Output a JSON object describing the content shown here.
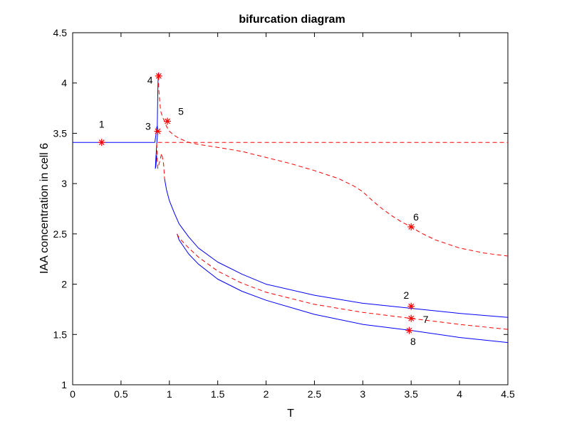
{
  "chart_data": {
    "type": "line",
    "title": "bifurcation diagram",
    "xlabel": "T",
    "ylabel": "IAA concentration in cell 6",
    "xlim": [
      0,
      4.5
    ],
    "ylim": [
      1,
      4.5
    ],
    "xticks": [
      "0",
      "0.5",
      "1",
      "1.5",
      "2",
      "2.5",
      "3",
      "3.5",
      "4",
      "4.5"
    ],
    "yticks": [
      "1",
      "1.5",
      "2",
      "2.5",
      "3",
      "3.5",
      "4",
      "4.5"
    ],
    "xtick_values": [
      0,
      0.5,
      1,
      1.5,
      2,
      2.5,
      3,
      3.5,
      4,
      4.5
    ],
    "ytick_values": [
      1,
      1.5,
      2,
      2.5,
      3,
      3.5,
      4,
      4.5
    ],
    "grid": false,
    "colors": {
      "stable": "#0000ff",
      "unstable": "#ff0000",
      "axes": "#000000"
    },
    "series": [
      {
        "style": "stable",
        "x": [
          0,
          0.5,
          0.85
        ],
        "y": [
          3.41,
          3.41,
          3.41
        ]
      },
      {
        "style": "stable",
        "x": [
          0.85,
          0.86,
          0.87,
          0.875,
          0.88,
          0.87,
          0.86,
          0.855,
          0.86,
          0.865,
          0.87
        ],
        "y": [
          3.41,
          3.48,
          3.56,
          3.57,
          3.52,
          3.4,
          3.25,
          3.15,
          3.17,
          3.22,
          3.28
        ]
      },
      {
        "style": "stable",
        "x": [
          0.875,
          0.88,
          0.885
        ],
        "y": [
          3.55,
          3.9,
          4.1
        ]
      },
      {
        "style": "stable",
        "x": [
          0.95,
          0.97,
          1.0,
          1.05,
          1.1,
          1.2,
          1.3,
          1.5,
          1.75,
          2.0,
          2.5,
          3.0,
          3.5,
          4.0,
          4.5
        ],
        "y": [
          3.05,
          2.94,
          2.83,
          2.71,
          2.6,
          2.47,
          2.36,
          2.22,
          2.1,
          2.0,
          1.89,
          1.81,
          1.76,
          1.71,
          1.67
        ]
      },
      {
        "style": "stable",
        "x": [
          1.08,
          1.1,
          1.2,
          1.3,
          1.5,
          1.75,
          2.0,
          2.5,
          3.0,
          3.5,
          4.0,
          4.5
        ],
        "y": [
          2.5,
          2.44,
          2.3,
          2.2,
          2.05,
          1.93,
          1.84,
          1.7,
          1.6,
          1.54,
          1.47,
          1.42
        ]
      },
      {
        "style": "unstable",
        "x": [
          0.88,
          1.0,
          1.5,
          2.0,
          2.5,
          3.0,
          3.5,
          4.0,
          4.5
        ],
        "y": [
          3.41,
          3.41,
          3.41,
          3.41,
          3.41,
          3.41,
          3.41,
          3.41,
          3.41
        ]
      },
      {
        "style": "unstable",
        "x": [
          0.885,
          0.89,
          0.9,
          0.91,
          0.93,
          0.95,
          0.97,
          1.0,
          1.05,
          1.1,
          1.2,
          1.3,
          1.5,
          1.75,
          2.0,
          2.25,
          2.5,
          2.75,
          2.9,
          3.0,
          3.1,
          3.2,
          3.3,
          3.4,
          3.5,
          3.6,
          3.75,
          4.0,
          4.25,
          4.5
        ],
        "y": [
          4.07,
          3.95,
          3.82,
          3.72,
          3.66,
          3.62,
          3.57,
          3.52,
          3.48,
          3.45,
          3.41,
          3.39,
          3.36,
          3.32,
          3.26,
          3.2,
          3.13,
          3.05,
          2.98,
          2.92,
          2.83,
          2.75,
          2.68,
          2.62,
          2.57,
          2.51,
          2.44,
          2.36,
          2.31,
          2.28
        ]
      },
      {
        "style": "unstable",
        "x": [
          0.87,
          0.875,
          0.88,
          0.9,
          0.92,
          0.94,
          0.95
        ],
        "y": [
          3.4,
          3.25,
          3.15,
          3.22,
          3.3,
          3.2,
          3.05
        ]
      },
      {
        "style": "unstable",
        "x": [
          1.08,
          1.1,
          1.2,
          1.3,
          1.5,
          1.75,
          2.0,
          2.5,
          3.0,
          3.5,
          4.0,
          4.5
        ],
        "y": [
          2.5,
          2.46,
          2.36,
          2.27,
          2.13,
          2.01,
          1.92,
          1.8,
          1.72,
          1.66,
          1.6,
          1.55
        ]
      }
    ],
    "markers": [
      {
        "label": "1",
        "x": 0.3,
        "y": 3.41,
        "label_dx": 0.0,
        "label_dy": 0.18
      },
      {
        "label": "2",
        "x": 3.5,
        "y": 1.78,
        "label_dx": -0.05,
        "label_dy": 0.11
      },
      {
        "label": "3",
        "x": 0.88,
        "y": 3.52,
        "label_dx": -0.1,
        "label_dy": 0.05
      },
      {
        "label": "4",
        "x": 0.89,
        "y": 4.07,
        "label_dx": -0.09,
        "label_dy": -0.04
      },
      {
        "label": "5",
        "x": 0.98,
        "y": 3.62,
        "label_dx": 0.14,
        "label_dy": 0.1
      },
      {
        "label": "6",
        "x": 3.5,
        "y": 2.57,
        "label_dx": 0.05,
        "label_dy": 0.1
      },
      {
        "label": "7",
        "x": 3.5,
        "y": 1.66,
        "label_dx": 0.15,
        "label_dy": -0.01
      },
      {
        "label": "8",
        "x": 3.48,
        "y": 1.54,
        "label_dx": 0.04,
        "label_dy": -0.11
      }
    ]
  }
}
